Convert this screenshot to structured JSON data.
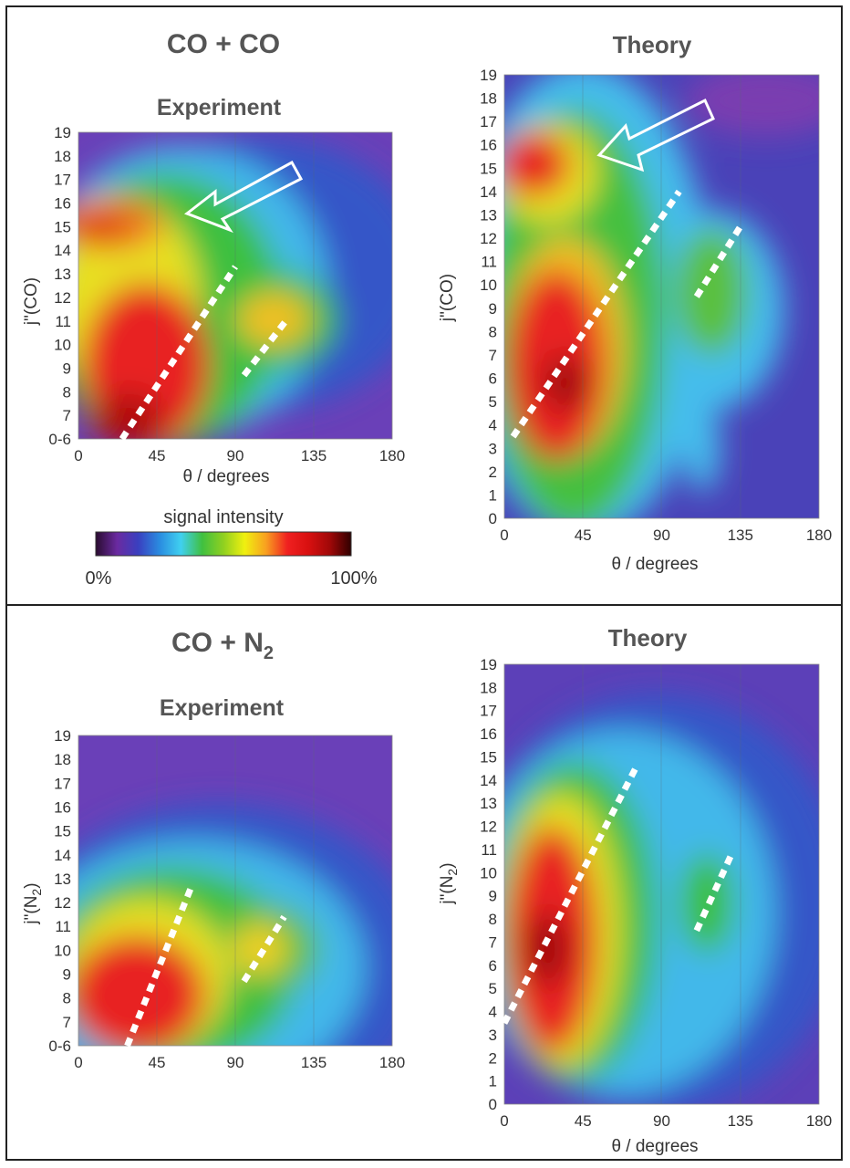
{
  "panels": [
    {
      "id": "p1",
      "heading": "CO + CO",
      "subheading": "Experiment",
      "xlabel": "θ / degrees",
      "ylabel": "j\"(CO)",
      "ytick_prefix": "0-6",
      "ylim": [
        6,
        19
      ]
    },
    {
      "id": "p2",
      "heading": "Theory",
      "subheading": "",
      "xlabel": "θ / degrees",
      "ylabel": "j\"(CO)",
      "ytick_prefix": "0",
      "ylim": [
        0,
        19
      ]
    },
    {
      "id": "p3",
      "heading": "CO + N",
      "heading_sub": "2",
      "subheading": "Experiment",
      "xlabel": "",
      "ylabel": "j\"(N",
      "ylabel_sub": "2",
      "ylabel_tail": ")",
      "ytick_prefix": "0-6",
      "ylim": [
        6,
        19
      ]
    },
    {
      "id": "p4",
      "heading": "Theory",
      "subheading": "",
      "xlabel": "θ / degrees",
      "ylabel": "j\"(N",
      "ylabel_sub": "2",
      "ylabel_tail": ")",
      "ytick_prefix": "0",
      "ylim": [
        0,
        19
      ]
    }
  ],
  "colorbar": {
    "label": "signal intensity",
    "min_label": "0%",
    "max_label": "100%",
    "stops": [
      "#2a0c30",
      "#6a2aa0",
      "#3a40c0",
      "#2a8ce0",
      "#40d0f0",
      "#40c040",
      "#90d020",
      "#f0f010",
      "#f8a020",
      "#f02020",
      "#d81010",
      "#a00808",
      "#300000"
    ]
  },
  "chart_data": [
    {
      "type": "heatmap",
      "title": "Experiment",
      "xlabel": "θ / degrees",
      "ylabel": "j\"(CO)",
      "x_ticks": [
        0,
        45,
        90,
        135,
        180
      ],
      "y_ticks": [
        "0-6",
        "7",
        "8",
        "9",
        "10",
        "11",
        "12",
        "13",
        "14",
        "15",
        "16",
        "17",
        "18",
        "19"
      ],
      "xlim": [
        0,
        180
      ],
      "ylim": [
        6,
        19
      ],
      "hotspots": [
        {
          "x": 35,
          "y": 9,
          "value": 1.0
        },
        {
          "x": 10,
          "y": 15,
          "value": 0.85
        },
        {
          "x": 110,
          "y": 11,
          "value": 0.7
        }
      ],
      "guide_lines": [
        {
          "from": [
            25,
            6
          ],
          "to": [
            90,
            13.3
          ]
        },
        {
          "from": [
            95,
            8.7
          ],
          "to": [
            120,
            11.1
          ]
        }
      ]
    },
    {
      "type": "heatmap",
      "title": "Theory",
      "xlabel": "θ / degrees",
      "ylabel": "j\"(CO)",
      "x_ticks": [
        0,
        45,
        90,
        135,
        180
      ],
      "y_ticks": [
        "0",
        "1",
        "2",
        "3",
        "4",
        "5",
        "6",
        "7",
        "8",
        "9",
        "10",
        "11",
        "12",
        "13",
        "14",
        "15",
        "16",
        "17",
        "18",
        "19"
      ],
      "xlim": [
        0,
        180
      ],
      "ylim": [
        0,
        19
      ],
      "hotspots": [
        {
          "x": 30,
          "y": 6,
          "value": 1.0
        },
        {
          "x": 15,
          "y": 15,
          "value": 0.85
        },
        {
          "x": 110,
          "y": 10,
          "value": 0.55
        }
      ],
      "guide_lines": [
        {
          "from": [
            5,
            3.5
          ],
          "to": [
            100,
            14
          ]
        },
        {
          "from": [
            110,
            9.5
          ],
          "to": [
            135,
            12.5
          ]
        }
      ]
    },
    {
      "type": "heatmap",
      "title": "Experiment",
      "xlabel": "",
      "ylabel": "j\"(N2)",
      "x_ticks": [
        0,
        45,
        90,
        135,
        180
      ],
      "y_ticks": [
        "0-6",
        "7",
        "8",
        "9",
        "10",
        "11",
        "12",
        "13",
        "14",
        "15",
        "16",
        "17",
        "18",
        "19"
      ],
      "xlim": [
        0,
        180
      ],
      "ylim": [
        6,
        19
      ],
      "hotspots": [
        {
          "x": 35,
          "y": 9,
          "value": 1.0
        },
        {
          "x": 105,
          "y": 10,
          "value": 0.75
        }
      ],
      "guide_lines": [
        {
          "from": [
            28,
            6
          ],
          "to": [
            65,
            12.7
          ]
        },
        {
          "from": [
            95,
            8.7
          ],
          "to": [
            118,
            11.4
          ]
        }
      ]
    },
    {
      "type": "heatmap",
      "title": "Theory",
      "xlabel": "θ / degrees",
      "ylabel": "j\"(N2)",
      "x_ticks": [
        0,
        45,
        90,
        135,
        180
      ],
      "y_ticks": [
        "0",
        "1",
        "2",
        "3",
        "4",
        "5",
        "6",
        "7",
        "8",
        "9",
        "10",
        "11",
        "12",
        "13",
        "14",
        "15",
        "16",
        "17",
        "18",
        "19"
      ],
      "xlim": [
        0,
        180
      ],
      "ylim": [
        0,
        19
      ],
      "hotspots": [
        {
          "x": 30,
          "y": 8,
          "value": 1.0
        },
        {
          "x": 115,
          "y": 9,
          "value": 0.55
        }
      ],
      "guide_lines": [
        {
          "from": [
            0,
            3.5
          ],
          "to": [
            75,
            14.5
          ]
        },
        {
          "from": [
            110,
            7.5
          ],
          "to": [
            130,
            10.8
          ]
        }
      ]
    }
  ]
}
